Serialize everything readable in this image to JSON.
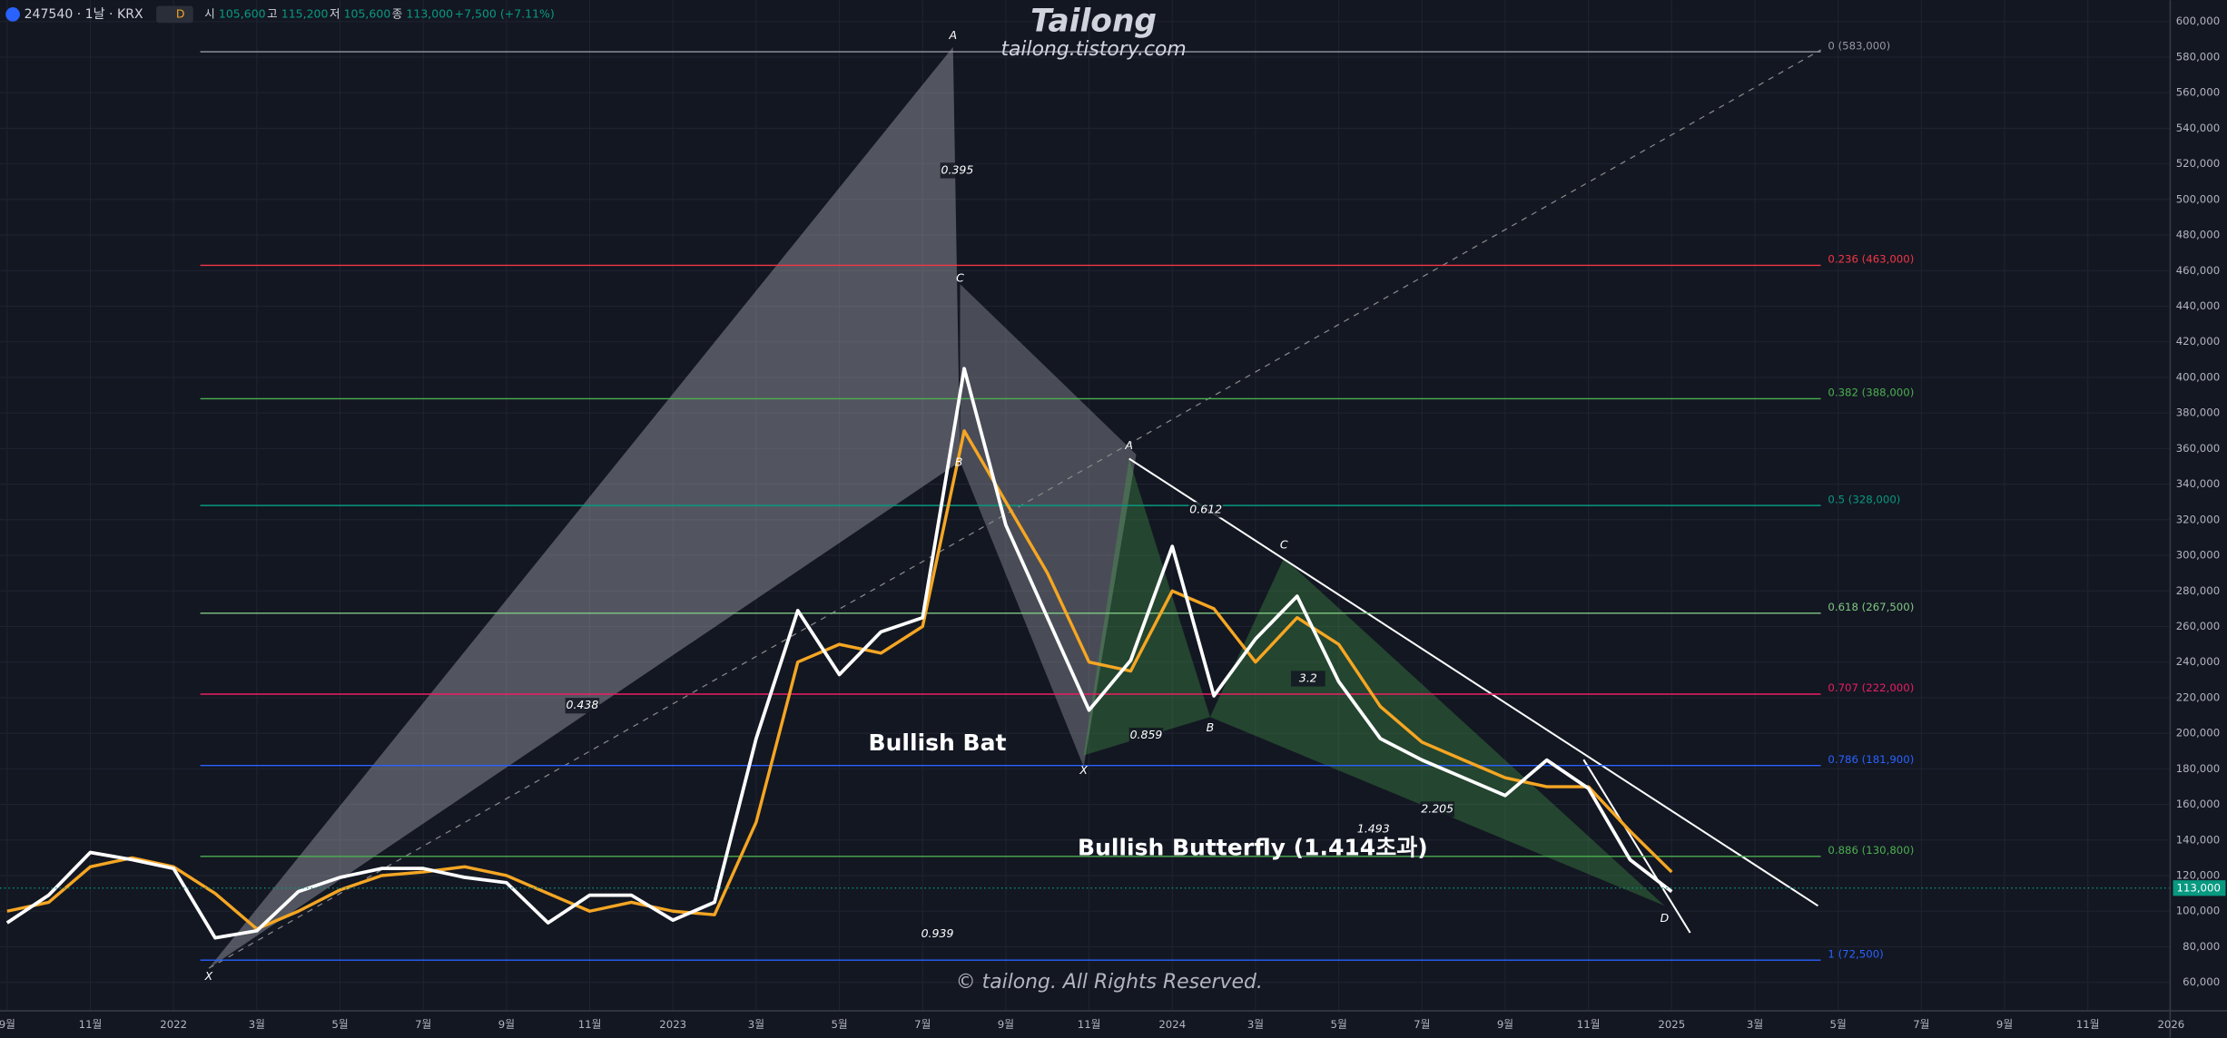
{
  "header": {
    "symbol": "247540 · 1날 · KRX",
    "interval_badge": "D",
    "ohlc": [
      {
        "label": "시",
        "value": "105,600"
      },
      {
        "label": "고",
        "value": "115,200"
      },
      {
        "label": "저",
        "value": "105,600"
      },
      {
        "label": "종",
        "value": "113,000"
      }
    ],
    "change": "+7,500 (+7.11%)"
  },
  "copyright": "© tailong. All Rights Reserved.",
  "chart_data": {
    "type": "line",
    "title": "Tailong",
    "subtitle": "tailong.tistory.com",
    "x": [
      "2021-09",
      "2021-10",
      "2021-11",
      "2021-12",
      "2022-01",
      "2022-02",
      "2022-03",
      "2022-04",
      "2022-05",
      "2022-06",
      "2022-07",
      "2022-08",
      "2022-09",
      "2022-10",
      "2022-11",
      "2022-12",
      "2023-01",
      "2023-02",
      "2023-03",
      "2023-04",
      "2023-05",
      "2023-06",
      "2023-07",
      "2023-08",
      "2023-09",
      "2023-10",
      "2023-11",
      "2023-12",
      "2024-01",
      "2024-02",
      "2024-03",
      "2024-04",
      "2024-05",
      "2024-06",
      "2024-07",
      "2024-08",
      "2024-09",
      "2024-10",
      "2024-11",
      "2024-12",
      "2025-01"
    ],
    "series": [
      {
        "color": "#f5a623",
        "values": [
          100000,
          105000,
          125000,
          130000,
          125000,
          110000,
          90000,
          100000,
          112000,
          120000,
          122000,
          125000,
          120000,
          110000,
          100000,
          105000,
          100000,
          98000,
          150000,
          240000,
          250000,
          245000,
          260000,
          370000,
          330000,
          290000,
          240000,
          235000,
          280000,
          270000,
          240000,
          265000,
          250000,
          215000,
          195000,
          185000,
          175000,
          170000,
          170000,
          145000,
          122000
        ]
      },
      {
        "color": "#ffffff",
        "values": [
          93500,
          109000,
          133000,
          129000,
          124000,
          85000,
          89000,
          111000,
          119000,
          124000,
          124000,
          119000,
          116000,
          93500,
          109000,
          109000,
          95000,
          105000,
          197000,
          269000,
          233000,
          257000,
          265000,
          405000,
          317000,
          265000,
          213000,
          241000,
          305000,
          221000,
          253000,
          277000,
          229000,
          197000,
          185000,
          175000,
          165000,
          185000,
          169000,
          129000,
          111000
        ]
      }
    ],
    "ylim": [
      44000,
      612000
    ],
    "yticks": [
      {
        "value": 60000,
        "label": "60,000"
      },
      {
        "value": 80000,
        "label": "80,000"
      },
      {
        "value": 100000,
        "label": "100,000"
      },
      {
        "value": 120000,
        "label": "120,000"
      },
      {
        "value": 140000,
        "label": "140,000"
      },
      {
        "value": 160000,
        "label": "160,000"
      },
      {
        "value": 180000,
        "label": "180,000"
      },
      {
        "value": 200000,
        "label": "200,000"
      },
      {
        "value": 220000,
        "label": "220,000"
      },
      {
        "value": 240000,
        "label": "240,000"
      },
      {
        "value": 260000,
        "label": "260,000"
      },
      {
        "value": 280000,
        "label": "280,000"
      },
      {
        "value": 300000,
        "label": "300,000"
      },
      {
        "value": 320000,
        "label": "320,000"
      },
      {
        "value": 340000,
        "label": "340,000"
      },
      {
        "value": 360000,
        "label": "360,000"
      },
      {
        "value": 380000,
        "label": "380,000"
      },
      {
        "value": 400000,
        "label": "400,000"
      },
      {
        "value": 420000,
        "label": "420,000"
      },
      {
        "value": 440000,
        "label": "440,000"
      },
      {
        "value": 460000,
        "label": "460,000"
      },
      {
        "value": 480000,
        "label": "480,000"
      },
      {
        "value": 500000,
        "label": "500,000"
      },
      {
        "value": 520000,
        "label": "520,000"
      },
      {
        "value": 540000,
        "label": "540,000"
      },
      {
        "value": 560000,
        "label": "560,000"
      },
      {
        "value": 580000,
        "label": "580,000"
      },
      {
        "value": 600000,
        "label": "600,000"
      }
    ],
    "xticks": [
      {
        "value": "2021-09",
        "label": "9월"
      },
      {
        "value": "2021-11",
        "label": "11월"
      },
      {
        "value": "2022-01",
        "label": "2022"
      },
      {
        "value": "2022-03",
        "label": "3월"
      },
      {
        "value": "2022-05",
        "label": "5월"
      },
      {
        "value": "2022-07",
        "label": "7월"
      },
      {
        "value": "2022-09",
        "label": "9월"
      },
      {
        "value": "2022-11",
        "label": "11월"
      },
      {
        "value": "2023-01",
        "label": "2023"
      },
      {
        "value": "2023-03",
        "label": "3월"
      },
      {
        "value": "2023-05",
        "label": "5월"
      },
      {
        "value": "2023-07",
        "label": "7월"
      },
      {
        "value": "2023-09",
        "label": "9월"
      },
      {
        "value": "2023-11",
        "label": "11월"
      },
      {
        "value": "2024-01",
        "label": "2024"
      },
      {
        "value": "2024-03",
        "label": "3월"
      },
      {
        "value": "2024-05",
        "label": "5월"
      },
      {
        "value": "2024-07",
        "label": "7월"
      },
      {
        "value": "2024-09",
        "label": "9월"
      },
      {
        "value": "2024-11",
        "label": "11월"
      },
      {
        "value": "2025-01",
        "label": "2025"
      },
      {
        "value": "2025-03",
        "label": "3월"
      },
      {
        "value": "2025-05",
        "label": "5월"
      },
      {
        "value": "2025-07",
        "label": "7월"
      },
      {
        "value": "2025-09",
        "label": "9월"
      },
      {
        "value": "2025-11",
        "label": "11월"
      },
      {
        "value": "2026-01",
        "label": "2026"
      }
    ],
    "grid": true,
    "fib_levels": [
      {
        "label": "0 (583,000)",
        "value": 583000,
        "color": "#9598a1"
      },
      {
        "label": "0.236 (463,000)",
        "value": 463000,
        "color": "#f23645"
      },
      {
        "label": "0.382 (388,000)",
        "value": 388000,
        "color": "#4caf50"
      },
      {
        "label": "0.5 (328,000)",
        "value": 328000,
        "color": "#089981"
      },
      {
        "label": "0.618 (267,500)",
        "value": 267500,
        "color": "#81c784"
      },
      {
        "label": "0.707 (222,000)",
        "value": 222000,
        "color": "#e91e63"
      },
      {
        "label": "0.786 (181,900)",
        "value": 181900,
        "color": "#2962ff"
      },
      {
        "label": "0.886 (130,800)",
        "value": 130800,
        "color": "#4caf50"
      },
      {
        "label": "1 (72,500)",
        "value": 72500,
        "color": "#2962ff"
      }
    ],
    "current_price": {
      "value": 113000,
      "label": "113,000",
      "color": "#089981"
    },
    "annotations": [
      "Bullish Bat",
      "Bullish Butterfly (1.414초과)"
    ],
    "point_labels": [
      "X",
      "A",
      "B",
      "C",
      "X",
      "A",
      "B",
      "C",
      "D"
    ],
    "ratio_labels": [
      "0.395",
      "0.438",
      "0.939",
      "0.612",
      "0.859",
      "3.2",
      "1.493",
      "2.205"
    ]
  }
}
